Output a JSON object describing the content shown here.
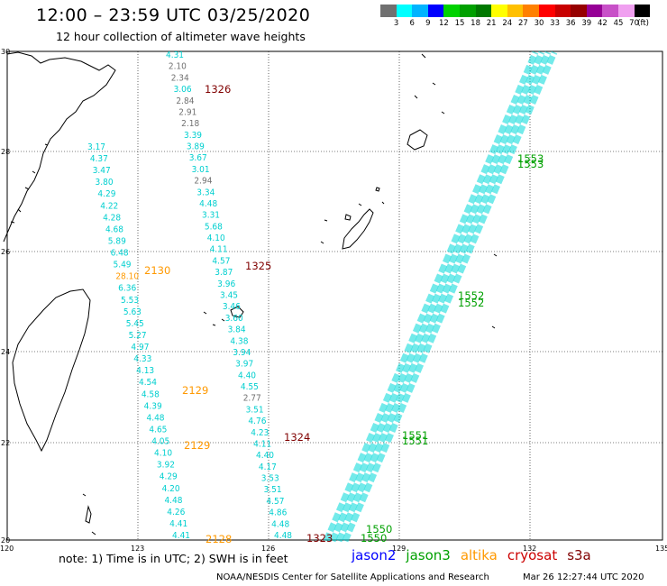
{
  "header": {
    "title": "12:00 – 23:59 UTC 03/25/2020",
    "subtitle": "12 hour collection of altimeter wave heights"
  },
  "colorbar": {
    "colors": [
      "#707070",
      "#00ffff",
      "#00b4ff",
      "#0000ff",
      "#00d200",
      "#00a000",
      "#007800",
      "#ffff00",
      "#ffc000",
      "#ff8000",
      "#ff0000",
      "#c80000",
      "#960000",
      "#960096",
      "#c850c8",
      "#f0a0f0",
      "#000000"
    ],
    "labels": [
      "3",
      "6",
      "9",
      "12",
      "15",
      "18",
      "21",
      "24",
      "27",
      "30",
      "33",
      "36",
      "39",
      "42",
      "45",
      "70"
    ],
    "unit": "(ft)"
  },
  "axes": {
    "lat_labels": [
      "30",
      "28",
      "26",
      "24",
      "22",
      "20"
    ],
    "lon_labels": [
      "120",
      "123",
      "126",
      "129",
      "132",
      "135"
    ]
  },
  "tracks": [
    {
      "values": [
        {
          "v": "3.17",
          "c": "#00cfcf"
        },
        {
          "v": "4.37",
          "c": "#00cfcf"
        },
        {
          "v": "3.47",
          "c": "#00cfcf"
        },
        {
          "v": "3.80",
          "c": "#00cfcf"
        },
        {
          "v": "4.29",
          "c": "#00cfcf"
        },
        {
          "v": "4.22",
          "c": "#00cfcf"
        },
        {
          "v": "4.28",
          "c": "#00cfcf"
        },
        {
          "v": "4.68",
          "c": "#00cfcf"
        },
        {
          "v": "5.89",
          "c": "#00cfcf"
        },
        {
          "v": "6.48",
          "c": "#00cfcf"
        },
        {
          "v": "5.49",
          "c": "#00cfcf"
        },
        {
          "v": "28.10",
          "c": "#ff9900"
        },
        {
          "v": "6.36",
          "c": "#00cfcf"
        },
        {
          "v": "5.53",
          "c": "#00cfcf"
        },
        {
          "v": "5.63",
          "c": "#00cfcf"
        },
        {
          "v": "5.45",
          "c": "#00cfcf"
        },
        {
          "v": "5.27",
          "c": "#00cfcf"
        },
        {
          "v": "4.97",
          "c": "#00cfcf"
        },
        {
          "v": "4.33",
          "c": "#00cfcf"
        },
        {
          "v": "4.13",
          "c": "#00cfcf"
        },
        {
          "v": "4.54",
          "c": "#00cfcf"
        },
        {
          "v": "4.58",
          "c": "#00cfcf"
        },
        {
          "v": "4.39",
          "c": "#00cfcf"
        },
        {
          "v": "4.48",
          "c": "#00cfcf"
        },
        {
          "v": "4.65",
          "c": "#00cfcf"
        },
        {
          "v": "4.05",
          "c": "#00cfcf"
        },
        {
          "v": "4.10",
          "c": "#00cfcf"
        },
        {
          "v": "3.92",
          "c": "#00cfcf"
        },
        {
          "v": "4.29",
          "c": "#00cfcf"
        },
        {
          "v": "4.20",
          "c": "#00cfcf"
        },
        {
          "v": "4.48",
          "c": "#00cfcf"
        },
        {
          "v": "4.26",
          "c": "#00cfcf"
        },
        {
          "v": "4.41",
          "c": "#00cfcf"
        },
        {
          "v": "4.41",
          "c": "#00cfcf"
        }
      ],
      "times": [
        {
          "t": "2130",
          "c": "#ff9900"
        },
        {
          "t": "2129",
          "c": "#ff9900"
        },
        {
          "t": "2129",
          "c": "#ff9900"
        },
        {
          "t": "2128",
          "c": "#ff9900"
        }
      ]
    },
    {
      "values": [
        {
          "v": "4.31",
          "c": "#00cfcf"
        },
        {
          "v": "2.10",
          "c": "#707070"
        },
        {
          "v": "2.34",
          "c": "#707070"
        },
        {
          "v": "3.06",
          "c": "#00cfcf"
        },
        {
          "v": "2.84",
          "c": "#707070"
        },
        {
          "v": "2.91",
          "c": "#707070"
        },
        {
          "v": "2.18",
          "c": "#707070"
        },
        {
          "v": "3.39",
          "c": "#00cfcf"
        },
        {
          "v": "3.89",
          "c": "#00cfcf"
        },
        {
          "v": "3.67",
          "c": "#00cfcf"
        },
        {
          "v": "3.01",
          "c": "#00cfcf"
        },
        {
          "v": "2.94",
          "c": "#707070"
        },
        {
          "v": "3.34",
          "c": "#00cfcf"
        },
        {
          "v": "4.48",
          "c": "#00cfcf"
        },
        {
          "v": "3.31",
          "c": "#00cfcf"
        },
        {
          "v": "5.68",
          "c": "#00cfcf"
        },
        {
          "v": "4.10",
          "c": "#00cfcf"
        },
        {
          "v": "4.11",
          "c": "#00cfcf"
        },
        {
          "v": "4.57",
          "c": "#00cfcf"
        },
        {
          "v": "3.87",
          "c": "#00cfcf"
        },
        {
          "v": "3.96",
          "c": "#00cfcf"
        },
        {
          "v": "3.45",
          "c": "#00cfcf"
        },
        {
          "v": "3.46",
          "c": "#00cfcf"
        },
        {
          "v": "3.60",
          "c": "#00cfcf"
        },
        {
          "v": "3.84",
          "c": "#00cfcf"
        },
        {
          "v": "4.38",
          "c": "#00cfcf"
        },
        {
          "v": "3.94",
          "c": "#00cfcf"
        },
        {
          "v": "3.97",
          "c": "#00cfcf"
        },
        {
          "v": "4.40",
          "c": "#00cfcf"
        },
        {
          "v": "4.55",
          "c": "#00cfcf"
        },
        {
          "v": "2.77",
          "c": "#707070"
        },
        {
          "v": "3.51",
          "c": "#00cfcf"
        },
        {
          "v": "4.76",
          "c": "#00cfcf"
        },
        {
          "v": "4.23",
          "c": "#00cfcf"
        },
        {
          "v": "4.11",
          "c": "#00cfcf"
        },
        {
          "v": "4.40",
          "c": "#00cfcf"
        },
        {
          "v": "4.17",
          "c": "#00cfcf"
        },
        {
          "v": "3.53",
          "c": "#00cfcf"
        },
        {
          "v": "3.51",
          "c": "#00cfcf"
        },
        {
          "v": "4.57",
          "c": "#00cfcf"
        },
        {
          "v": "4.86",
          "c": "#00cfcf"
        },
        {
          "v": "4.48",
          "c": "#00cfcf"
        },
        {
          "v": "4.48",
          "c": "#00cfcf"
        }
      ],
      "times": [
        {
          "t": "1326",
          "c": "#800000"
        },
        {
          "t": "1325",
          "c": "#800000"
        },
        {
          "t": "1324",
          "c": "#800000"
        },
        {
          "t": "1323",
          "c": "#800000"
        }
      ]
    }
  ],
  "swath": {
    "times": [
      "1553",
      "1553",
      "1552",
      "1552",
      "1551",
      "1551",
      "1550",
      "1550"
    ]
  },
  "note": "note: 1) Time is in UTC; 2) SWH is in feet",
  "legend": [
    {
      "name": "jason2",
      "color": "#0000ff"
    },
    {
      "name": "jason3",
      "color": "#00a000"
    },
    {
      "name": "altika",
      "color": "#ff9900"
    },
    {
      "name": "cryosat",
      "color": "#cc0000"
    },
    {
      "name": "s3a",
      "color": "#800000"
    }
  ],
  "credit": "NOAA/NESDIS Center for Satellite Applications and Research",
  "timestamp": "Mar 26 12:27:44 UTC 2020"
}
